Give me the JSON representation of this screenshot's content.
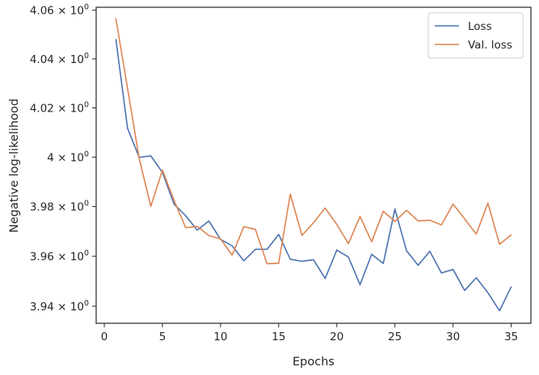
{
  "chart_data": {
    "type": "line",
    "title": "",
    "xlabel": "Epochs",
    "ylabel": "Negative log-likelihood",
    "xlim": [
      -0.7,
      36.7
    ],
    "ylim": [
      3.9332,
      4.0612
    ],
    "x_ticks": [
      0,
      5,
      10,
      15,
      20,
      25,
      30,
      35
    ],
    "y_ticks": [
      3.94,
      3.96,
      3.98,
      4.0,
      4.02,
      4.04,
      4.06
    ],
    "y_tick_labels": [
      {
        "base": "3.94 × 10",
        "exp": "0"
      },
      {
        "base": "3.96 × 10",
        "exp": "0"
      },
      {
        "base": "3.98 × 10",
        "exp": "0"
      },
      {
        "base": "4 × 10",
        "exp": "0"
      },
      {
        "base": "4.02 × 10",
        "exp": "0"
      },
      {
        "base": "4.04 × 10",
        "exp": "0"
      },
      {
        "base": "4.06 × 10",
        "exp": "0"
      }
    ],
    "y_scale": "log",
    "grid": false,
    "legend_position": "top-right",
    "x": [
      1,
      2,
      3,
      4,
      5,
      6,
      7,
      8,
      9,
      10,
      11,
      12,
      13,
      14,
      15,
      16,
      17,
      18,
      19,
      20,
      21,
      22,
      23,
      24,
      25,
      26,
      27,
      28,
      29,
      30,
      31,
      32,
      33,
      34,
      35
    ],
    "series": [
      {
        "name": "Loss",
        "color": "#4c72b0",
        "values": [
          4.0479,
          4.0117,
          3.9999,
          4.0005,
          3.9938,
          3.981,
          3.9763,
          3.9705,
          3.9742,
          3.9668,
          3.9642,
          3.9582,
          3.9628,
          3.9628,
          3.9688,
          3.9588,
          3.958,
          3.9586,
          3.9511,
          3.9625,
          3.9597,
          3.9486,
          3.9608,
          3.9571,
          3.979,
          3.9622,
          3.9564,
          3.962,
          3.9533,
          3.9547,
          3.9463,
          3.9514,
          3.9454,
          3.9382,
          3.9477
        ]
      },
      {
        "name": "Val. loss",
        "color": "#dd8452",
        "values": [
          4.0565,
          4.028,
          3.9995,
          3.9801,
          3.9947,
          3.9825,
          3.9715,
          3.972,
          3.9683,
          3.967,
          3.9604,
          3.9719,
          3.9708,
          3.957,
          3.9572,
          3.985,
          3.9684,
          3.9735,
          3.9794,
          3.9728,
          3.9651,
          3.976,
          3.9658,
          3.9781,
          3.974,
          3.9785,
          3.9742,
          3.9745,
          3.9726,
          3.981,
          3.975,
          3.9689,
          3.9814,
          3.9648,
          3.9686
        ]
      }
    ]
  }
}
